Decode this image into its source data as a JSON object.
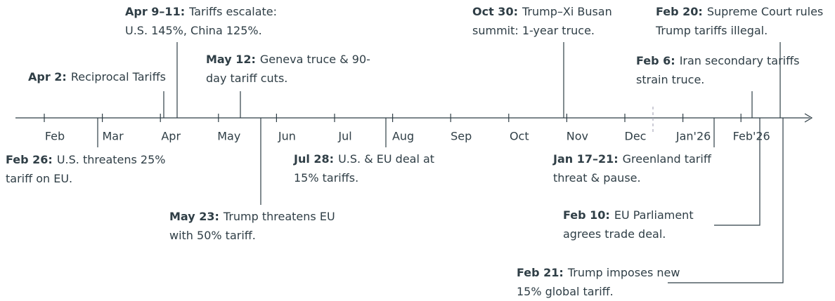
{
  "axis": {
    "months": [
      "Feb",
      "Mar",
      "Apr",
      "May",
      "Jun",
      "Jul",
      "Aug",
      "Sep",
      "Oct",
      "Nov",
      "Dec",
      "Jan'26",
      "Feb'26"
    ]
  },
  "events": [
    {
      "date": "Apr 2:",
      "lines": [
        "Reciprocal Tariffs"
      ]
    },
    {
      "date": "Apr 9–11:",
      "lines": [
        "Tariffs escalate:",
        "U.S. 145%, China 125%."
      ]
    },
    {
      "date": "May 12:",
      "lines": [
        "Geneva truce & 90-",
        "day tariff cuts."
      ]
    },
    {
      "date": "Oct 30:",
      "lines": [
        "Trump–Xi Busan",
        "summit: 1-year truce."
      ]
    },
    {
      "date": "Feb 20:",
      "lines": [
        "Supreme Court rules",
        "Trump tariffs illegal."
      ]
    },
    {
      "date": "Feb 6:",
      "lines": [
        "Iran secondary tariffs",
        "strain truce."
      ]
    },
    {
      "date": "Feb 26:",
      "lines": [
        "U.S. threatens 25%",
        "tariff on EU."
      ]
    },
    {
      "date": "Jul 28:",
      "lines": [
        "U.S. & EU deal at",
        "15% tariffs."
      ]
    },
    {
      "date": "May 23:",
      "lines": [
        "Trump threatens EU",
        "with 50% tariff."
      ]
    },
    {
      "date": "Jan 17–21:",
      "lines": [
        "Greenland tariff",
        "threat & pause."
      ]
    },
    {
      "date": "Feb 10:",
      "lines": [
        "EU Parliament",
        "agrees trade deal."
      ]
    },
    {
      "date": "Feb 21:",
      "lines": [
        "Trump imposes new",
        "15% global tariff."
      ]
    }
  ]
}
